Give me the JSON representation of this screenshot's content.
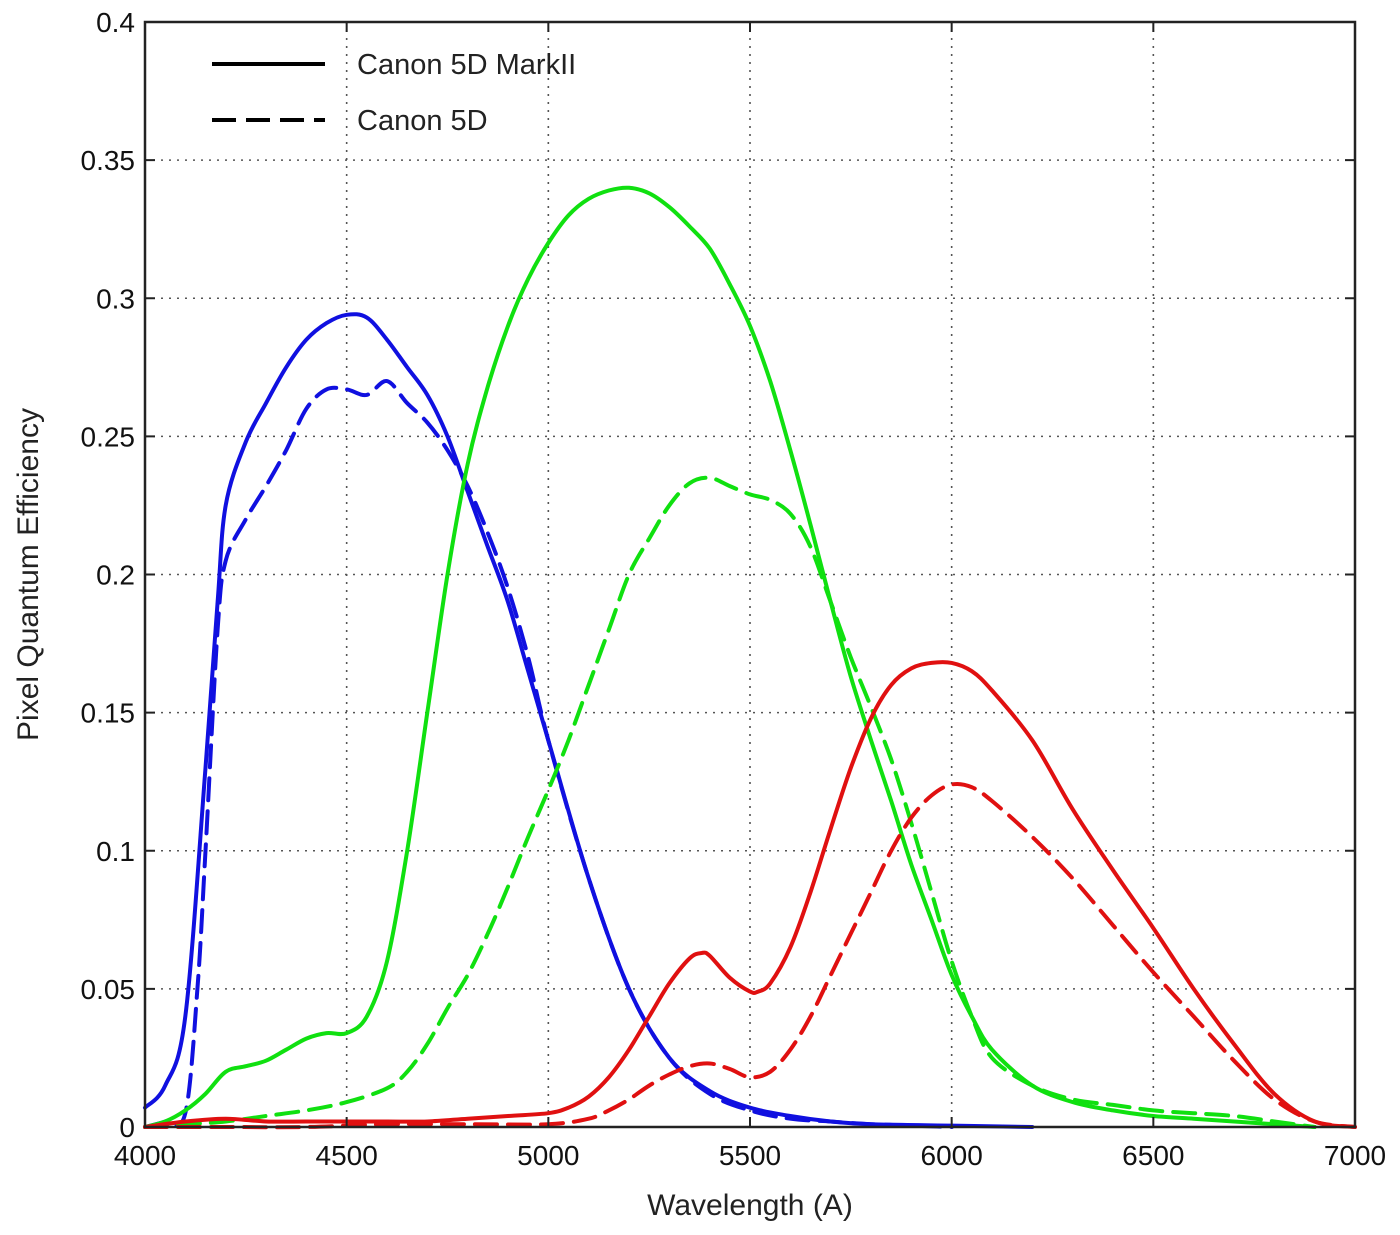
{
  "chart_data": {
    "type": "line",
    "title": "",
    "xlabel": "Wavelength (A)",
    "ylabel": "Pixel Quantum Efficiency",
    "xlim": [
      4000,
      7000
    ],
    "ylim": [
      0,
      0.4
    ],
    "x_ticks": [
      4000,
      4500,
      5000,
      5500,
      6000,
      6500,
      7000
    ],
    "x_tick_labels": [
      "4000",
      "4500",
      "5000",
      "5500",
      "6000",
      "6500",
      "7000"
    ],
    "y_ticks": [
      0,
      0.05,
      0.1,
      0.15,
      0.2,
      0.25,
      0.3,
      0.35,
      0.4
    ],
    "y_tick_labels": [
      "0",
      "0.05",
      "0.1",
      "0.15",
      "0.2",
      "0.25",
      "0.3",
      "0.35",
      "0.4"
    ],
    "grid": true,
    "legend_position": "top-left",
    "legend": [
      {
        "label": "Canon 5D MarkII",
        "style": "solid",
        "color": "#000000"
      },
      {
        "label": "Canon 5D",
        "style": "dashed",
        "color": "#000000"
      }
    ],
    "series": [
      {
        "camera": "Canon 5D MarkII",
        "channel": "blue",
        "color": "#1010e0",
        "style": "solid",
        "x": [
          4000,
          4050,
          4100,
          4150,
          4180,
          4200,
          4250,
          4300,
          4350,
          4400,
          4450,
          4500,
          4550,
          4600,
          4650,
          4700,
          4750,
          4800,
          4850,
          4900,
          4950,
          5000,
          5100,
          5200,
          5300,
          5400,
          5500,
          5600,
          5700,
          5800,
          6000,
          6200
        ],
        "y": [
          0.007,
          0.015,
          0.04,
          0.13,
          0.19,
          0.225,
          0.248,
          0.262,
          0.275,
          0.285,
          0.291,
          0.294,
          0.293,
          0.285,
          0.275,
          0.265,
          0.25,
          0.23,
          0.21,
          0.19,
          0.165,
          0.14,
          0.09,
          0.05,
          0.025,
          0.013,
          0.007,
          0.004,
          0.002,
          0.001,
          0.0005,
          0
        ]
      },
      {
        "camera": "Canon 5D",
        "channel": "blue",
        "color": "#1010e0",
        "style": "dashed",
        "x": [
          4000,
          4050,
          4100,
          4130,
          4150,
          4180,
          4200,
          4250,
          4300,
          4350,
          4400,
          4450,
          4500,
          4550,
          4600,
          4650,
          4700,
          4750,
          4800,
          4850,
          4900,
          4950,
          5000,
          5100,
          5200,
          5300,
          5400,
          5500,
          5600,
          5700,
          5800,
          6000
        ],
        "y": [
          0,
          0.002,
          0.005,
          0.05,
          0.1,
          0.18,
          0.205,
          0.22,
          0.232,
          0.245,
          0.26,
          0.267,
          0.267,
          0.265,
          0.27,
          0.262,
          0.255,
          0.245,
          0.232,
          0.215,
          0.195,
          0.17,
          0.14,
          0.09,
          0.05,
          0.025,
          0.012,
          0.006,
          0.003,
          0.002,
          0.001,
          0
        ]
      },
      {
        "camera": "Canon 5D MarkII",
        "channel": "green",
        "color": "#10e010",
        "style": "solid",
        "x": [
          4000,
          4050,
          4100,
          4150,
          4200,
          4250,
          4300,
          4350,
          4400,
          4450,
          4500,
          4550,
          4600,
          4650,
          4700,
          4750,
          4800,
          4850,
          4900,
          4950,
          5000,
          5050,
          5100,
          5150,
          5200,
          5250,
          5300,
          5350,
          5400,
          5450,
          5500,
          5550,
          5600,
          5650,
          5700,
          5750,
          5800,
          5850,
          5900,
          5950,
          6000,
          6050,
          6100,
          6200,
          6300,
          6400,
          6500,
          6600,
          6700,
          6800,
          6900
        ],
        "y": [
          0,
          0.002,
          0.006,
          0.012,
          0.02,
          0.022,
          0.024,
          0.028,
          0.032,
          0.034,
          0.034,
          0.04,
          0.06,
          0.1,
          0.15,
          0.2,
          0.24,
          0.268,
          0.29,
          0.307,
          0.32,
          0.33,
          0.336,
          0.339,
          0.34,
          0.338,
          0.333,
          0.326,
          0.318,
          0.305,
          0.29,
          0.27,
          0.245,
          0.218,
          0.19,
          0.163,
          0.14,
          0.118,
          0.095,
          0.075,
          0.055,
          0.04,
          0.028,
          0.015,
          0.009,
          0.006,
          0.004,
          0.003,
          0.002,
          0.001,
          0
        ]
      },
      {
        "camera": "Canon 5D",
        "channel": "green",
        "color": "#10e010",
        "style": "dashed",
        "x": [
          4000,
          4100,
          4200,
          4300,
          4400,
          4500,
          4600,
          4650,
          4700,
          4750,
          4800,
          4850,
          4900,
          4950,
          5000,
          5050,
          5100,
          5150,
          5200,
          5250,
          5300,
          5350,
          5400,
          5450,
          5500,
          5550,
          5600,
          5650,
          5700,
          5750,
          5800,
          5850,
          5900,
          5950,
          6000,
          6050,
          6100,
          6200,
          6300,
          6400,
          6500,
          6600,
          6700,
          6800,
          6900
        ],
        "y": [
          0,
          0.001,
          0.002,
          0.004,
          0.006,
          0.009,
          0.014,
          0.02,
          0.03,
          0.043,
          0.055,
          0.07,
          0.087,
          0.105,
          0.122,
          0.14,
          0.16,
          0.18,
          0.2,
          0.213,
          0.225,
          0.233,
          0.235,
          0.232,
          0.229,
          0.227,
          0.222,
          0.21,
          0.19,
          0.17,
          0.152,
          0.133,
          0.11,
          0.085,
          0.06,
          0.04,
          0.025,
          0.015,
          0.01,
          0.008,
          0.006,
          0.005,
          0.004,
          0.002,
          0
        ]
      },
      {
        "camera": "Canon 5D MarkII",
        "channel": "red",
        "color": "#e01010",
        "style": "solid",
        "x": [
          4000,
          4100,
          4200,
          4300,
          4400,
          4500,
          4600,
          4700,
          4800,
          4900,
          5000,
          5050,
          5100,
          5150,
          5200,
          5250,
          5300,
          5350,
          5380,
          5400,
          5450,
          5500,
          5520,
          5550,
          5600,
          5650,
          5700,
          5750,
          5800,
          5850,
          5900,
          5950,
          6000,
          6050,
          6100,
          6200,
          6300,
          6400,
          6500,
          6600,
          6700,
          6800,
          6900,
          7000
        ],
        "y": [
          0,
          0.002,
          0.003,
          0.002,
          0.002,
          0.002,
          0.002,
          0.002,
          0.003,
          0.004,
          0.005,
          0.007,
          0.011,
          0.018,
          0.028,
          0.04,
          0.052,
          0.061,
          0.063,
          0.062,
          0.054,
          0.049,
          0.049,
          0.052,
          0.065,
          0.085,
          0.108,
          0.13,
          0.148,
          0.16,
          0.166,
          0.168,
          0.168,
          0.165,
          0.158,
          0.14,
          0.115,
          0.093,
          0.072,
          0.05,
          0.03,
          0.012,
          0.002,
          0
        ]
      },
      {
        "camera": "Canon 5D",
        "channel": "red",
        "color": "#e01010",
        "style": "dashed",
        "x": [
          4000,
          4200,
          4400,
          4600,
          4800,
          5000,
          5100,
          5150,
          5200,
          5250,
          5300,
          5350,
          5400,
          5450,
          5500,
          5550,
          5600,
          5650,
          5700,
          5750,
          5800,
          5850,
          5900,
          5950,
          6000,
          6050,
          6100,
          6200,
          6300,
          6400,
          6500,
          6600,
          6700,
          6800,
          6900,
          7000
        ],
        "y": [
          0,
          0,
          0,
          0.001,
          0.001,
          0.001,
          0.003,
          0.006,
          0.01,
          0.015,
          0.019,
          0.022,
          0.023,
          0.021,
          0.018,
          0.02,
          0.028,
          0.04,
          0.055,
          0.07,
          0.085,
          0.1,
          0.112,
          0.12,
          0.124,
          0.123,
          0.118,
          0.105,
          0.09,
          0.073,
          0.056,
          0.04,
          0.024,
          0.01,
          0.002,
          0
        ]
      }
    ]
  }
}
